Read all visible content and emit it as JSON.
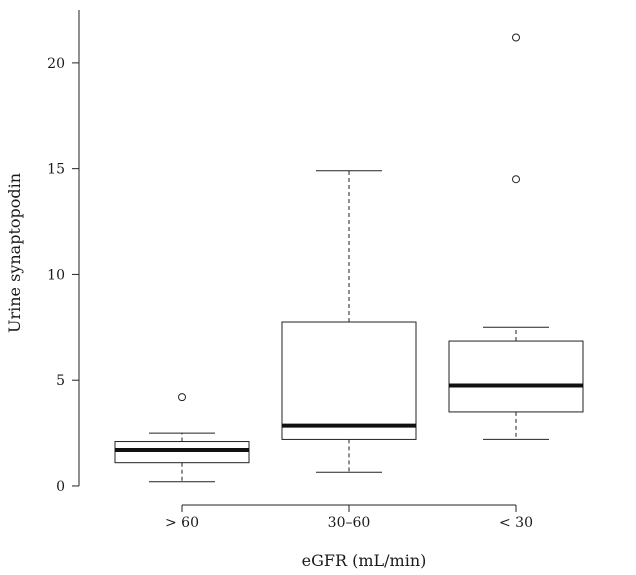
{
  "chart_data": {
    "type": "boxplot",
    "xlabel": "eGFR (mL/min)",
    "ylabel": "Urine synaptopodin",
    "ylim": [
      -0.9,
      22.5
    ],
    "yticks": [
      0,
      5,
      10,
      15,
      20
    ],
    "ytick_labels": [
      "0",
      "5",
      "10",
      "15",
      "20"
    ],
    "grid": false,
    "categories": [
      "> 60",
      "30–60",
      "< 30"
    ],
    "boxes": [
      {
        "category": "> 60",
        "whisker_low": 0.2,
        "q1": 1.1,
        "median": 1.7,
        "q3": 2.1,
        "whisker_high": 2.5,
        "outliers": [
          4.2
        ]
      },
      {
        "category": "30–60",
        "whisker_low": 0.65,
        "q1": 2.2,
        "median": 2.85,
        "q3": 7.75,
        "whisker_high": 14.9,
        "outliers": []
      },
      {
        "category": "< 30",
        "whisker_low": 2.2,
        "q1": 3.5,
        "median": 4.75,
        "q3": 6.85,
        "whisker_high": 7.5,
        "outliers": [
          14.5,
          21.2
        ]
      }
    ]
  }
}
